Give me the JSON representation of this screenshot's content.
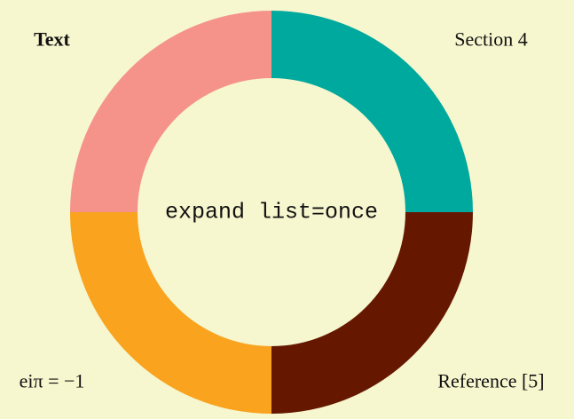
{
  "chart_data": {
    "type": "pie",
    "donut": true,
    "center_label": "expand list=once",
    "categories": [
      "Section 4",
      "Reference [5]",
      "eiπ = −1",
      "Text"
    ],
    "values": [
      25,
      25,
      25,
      25
    ],
    "colors": [
      "#00a99d",
      "#651700",
      "#f9a31f",
      "#f5938a"
    ]
  }
}
